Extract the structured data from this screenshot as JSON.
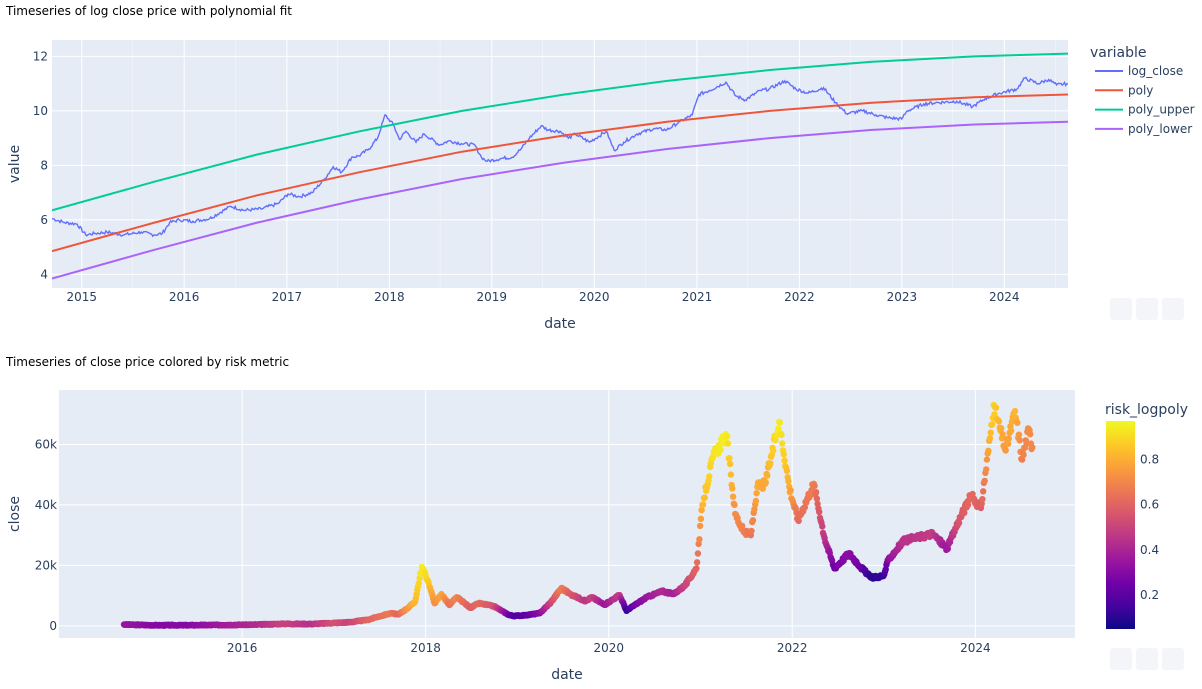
{
  "chart_data": [
    {
      "type": "line",
      "title": "Timeseries of log close price with polynomial fit",
      "xlabel": "date",
      "ylabel": "value",
      "x_ticks": [
        "2015",
        "2016",
        "2017",
        "2018",
        "2019",
        "2020",
        "2021",
        "2022",
        "2023",
        "2024"
      ],
      "y_ticks": [
        "4",
        "6",
        "8",
        "10",
        "12"
      ],
      "xlim": [
        "2014-09-17",
        "2024-08-15"
      ],
      "ylim": [
        3.5,
        12.6
      ],
      "grid": true,
      "legend": {
        "title": "variable",
        "placement": "right"
      },
      "series": [
        {
          "name": "log_close",
          "color": "#636efa",
          "points": [
            [
              "2014-09-17",
              6.05
            ],
            [
              "2014-11-01",
              5.9
            ],
            [
              "2014-12-15",
              5.85
            ],
            [
              "2015-01-15",
              5.45
            ],
            [
              "2015-02-15",
              5.5
            ],
            [
              "2015-04-01",
              5.55
            ],
            [
              "2015-06-01",
              5.45
            ],
            [
              "2015-08-01",
              5.55
            ],
            [
              "2015-09-15",
              5.45
            ],
            [
              "2015-10-15",
              5.5
            ],
            [
              "2015-11-10",
              5.9
            ],
            [
              "2015-12-15",
              6.0
            ],
            [
              "2016-02-01",
              5.95
            ],
            [
              "2016-04-01",
              6.05
            ],
            [
              "2016-06-15",
              6.5
            ],
            [
              "2016-08-01",
              6.35
            ],
            [
              "2016-10-01",
              6.4
            ],
            [
              "2016-12-01",
              6.6
            ],
            [
              "2017-01-05",
              6.95
            ],
            [
              "2017-02-15",
              6.85
            ],
            [
              "2017-04-01",
              7.0
            ],
            [
              "2017-05-15",
              7.5
            ],
            [
              "2017-06-15",
              7.95
            ],
            [
              "2017-07-15",
              7.75
            ],
            [
              "2017-08-20",
              8.3
            ],
            [
              "2017-09-15",
              8.35
            ],
            [
              "2017-10-20",
              8.6
            ],
            [
              "2017-11-20",
              9.0
            ],
            [
              "2017-12-17",
              9.85
            ],
            [
              "2018-01-15",
              9.5
            ],
            [
              "2018-02-06",
              8.95
            ],
            [
              "2018-03-01",
              9.25
            ],
            [
              "2018-04-06",
              8.85
            ],
            [
              "2018-05-05",
              9.15
            ],
            [
              "2018-06-29",
              8.75
            ],
            [
              "2018-08-01",
              8.9
            ],
            [
              "2018-09-15",
              8.8
            ],
            [
              "2018-11-01",
              8.75
            ],
            [
              "2018-11-25",
              8.3
            ],
            [
              "2018-12-15",
              8.15
            ],
            [
              "2019-02-01",
              8.25
            ],
            [
              "2019-03-15",
              8.3
            ],
            [
              "2019-04-15",
              8.6
            ],
            [
              "2019-05-15",
              9.0
            ],
            [
              "2019-06-26",
              9.45
            ],
            [
              "2019-07-20",
              9.3
            ],
            [
              "2019-09-01",
              9.25
            ],
            [
              "2019-10-01",
              9.0
            ],
            [
              "2019-10-26",
              9.15
            ],
            [
              "2019-12-15",
              8.85
            ],
            [
              "2020-02-13",
              9.25
            ],
            [
              "2020-03-12",
              8.55
            ],
            [
              "2020-04-15",
              8.85
            ],
            [
              "2020-06-01",
              9.15
            ],
            [
              "2020-08-01",
              9.35
            ],
            [
              "2020-09-15",
              9.3
            ],
            [
              "2020-11-01",
              9.6
            ],
            [
              "2020-12-15",
              9.85
            ],
            [
              "2021-01-08",
              10.6
            ],
            [
              "2021-02-15",
              10.75
            ],
            [
              "2021-04-14",
              11.05
            ],
            [
              "2021-05-19",
              10.55
            ],
            [
              "2021-06-22",
              10.4
            ],
            [
              "2021-08-15",
              10.75
            ],
            [
              "2021-09-15",
              10.8
            ],
            [
              "2021-11-10",
              11.1
            ],
            [
              "2021-12-20",
              10.8
            ],
            [
              "2022-02-01",
              10.65
            ],
            [
              "2022-03-28",
              10.85
            ],
            [
              "2022-05-10",
              10.3
            ],
            [
              "2022-06-18",
              9.9
            ],
            [
              "2022-08-15",
              10.0
            ],
            [
              "2022-10-01",
              9.85
            ],
            [
              "2022-11-10",
              9.75
            ],
            [
              "2022-12-31",
              9.7
            ],
            [
              "2023-01-20",
              10.0
            ],
            [
              "2023-03-20",
              10.25
            ],
            [
              "2023-05-01",
              10.3
            ],
            [
              "2023-07-15",
              10.35
            ],
            [
              "2023-09-10",
              10.15
            ],
            [
              "2023-10-25",
              10.45
            ],
            [
              "2023-12-15",
              10.65
            ],
            [
              "2024-02-15",
              10.8
            ],
            [
              "2024-03-14",
              11.2
            ],
            [
              "2024-05-01",
              11.0
            ],
            [
              "2024-06-07",
              11.15
            ],
            [
              "2024-07-05",
              10.95
            ],
            [
              "2024-08-15",
              11.0
            ]
          ]
        },
        {
          "name": "poly",
          "color": "#ef553b",
          "points": [
            [
              "2014-09-17",
              4.85
            ],
            [
              "2015-09-17",
              5.9
            ],
            [
              "2016-09-17",
              6.9
            ],
            [
              "2017-09-17",
              7.75
            ],
            [
              "2018-09-17",
              8.5
            ],
            [
              "2019-09-17",
              9.1
            ],
            [
              "2020-09-17",
              9.6
            ],
            [
              "2021-09-17",
              10.0
            ],
            [
              "2022-09-17",
              10.3
            ],
            [
              "2023-09-17",
              10.5
            ],
            [
              "2024-08-15",
              10.6
            ]
          ]
        },
        {
          "name": "poly_upper",
          "color": "#00cc96",
          "points": [
            [
              "2014-09-17",
              6.35
            ],
            [
              "2015-09-17",
              7.4
            ],
            [
              "2016-09-17",
              8.4
            ],
            [
              "2017-09-17",
              9.25
            ],
            [
              "2018-09-17",
              10.0
            ],
            [
              "2019-09-17",
              10.6
            ],
            [
              "2020-09-17",
              11.1
            ],
            [
              "2021-09-17",
              11.5
            ],
            [
              "2022-09-17",
              11.8
            ],
            [
              "2023-09-17",
              12.0
            ],
            [
              "2024-08-15",
              12.1
            ]
          ]
        },
        {
          "name": "poly_lower",
          "color": "#ab63fa",
          "points": [
            [
              "2014-09-17",
              3.85
            ],
            [
              "2015-09-17",
              4.9
            ],
            [
              "2016-09-17",
              5.9
            ],
            [
              "2017-09-17",
              6.75
            ],
            [
              "2018-09-17",
              7.5
            ],
            [
              "2019-09-17",
              8.1
            ],
            [
              "2020-09-17",
              8.6
            ],
            [
              "2021-09-17",
              9.0
            ],
            [
              "2022-09-17",
              9.3
            ],
            [
              "2023-09-17",
              9.5
            ],
            [
              "2024-08-15",
              9.6
            ]
          ]
        }
      ]
    },
    {
      "type": "scatter",
      "title": "Timeseries of close price colored by risk metric",
      "xlabel": "date",
      "ylabel": "close",
      "x_ticks": [
        "2016",
        "2018",
        "2020",
        "2022",
        "2024"
      ],
      "y_ticks": [
        "0",
        "20k",
        "40k",
        "60k"
      ],
      "xlim": [
        "2014-01-01",
        "2025-02-01"
      ],
      "ylim": [
        -4000,
        78000
      ],
      "grid": true,
      "colorbar": {
        "title": "risk_logpoly",
        "ticks": [
          "0.2",
          "0.4",
          "0.6",
          "0.8"
        ],
        "range": [
          0.05,
          0.97
        ],
        "colors": [
          "#0d0887",
          "#46039f",
          "#7201a8",
          "#9c179e",
          "#bd3786",
          "#d8576b",
          "#ed7953",
          "#fb9f3a",
          "#fdca26",
          "#f0f921"
        ]
      },
      "points": [
        [
          "2014-09-17",
          450,
          0.35
        ],
        [
          "2015-01-15",
          220,
          0.3
        ],
        [
          "2015-06-01",
          230,
          0.3
        ],
        [
          "2015-11-01",
          330,
          0.38
        ],
        [
          "2016-03-01",
          420,
          0.42
        ],
        [
          "2016-06-15",
          700,
          0.5
        ],
        [
          "2016-10-01",
          620,
          0.44
        ],
        [
          "2017-01-05",
          1000,
          0.55
        ],
        [
          "2017-03-01",
          1200,
          0.5
        ],
        [
          "2017-05-15",
          2000,
          0.6
        ],
        [
          "2017-06-15",
          2800,
          0.62
        ],
        [
          "2017-08-15",
          4200,
          0.66
        ],
        [
          "2017-09-15",
          3800,
          0.6
        ],
        [
          "2017-10-20",
          5800,
          0.74
        ],
        [
          "2017-11-20",
          8000,
          0.82
        ],
        [
          "2017-12-17",
          19500,
          0.95
        ],
        [
          "2018-01-10",
          15000,
          0.88
        ],
        [
          "2018-02-06",
          7500,
          0.72
        ],
        [
          "2018-03-05",
          10500,
          0.78
        ],
        [
          "2018-04-06",
          6900,
          0.64
        ],
        [
          "2018-05-05",
          9500,
          0.7
        ],
        [
          "2018-06-29",
          6000,
          0.58
        ],
        [
          "2018-08-01",
          7500,
          0.62
        ],
        [
          "2018-10-01",
          6500,
          0.55
        ],
        [
          "2018-11-25",
          3800,
          0.28
        ],
        [
          "2018-12-15",
          3300,
          0.18
        ],
        [
          "2019-02-01",
          3500,
          0.2
        ],
        [
          "2019-04-01",
          4200,
          0.3
        ],
        [
          "2019-05-15",
          7800,
          0.5
        ],
        [
          "2019-06-26",
          12500,
          0.68
        ],
        [
          "2019-08-01",
          10500,
          0.58
        ],
        [
          "2019-10-01",
          8200,
          0.45
        ],
        [
          "2019-10-26",
          9500,
          0.5
        ],
        [
          "2019-12-15",
          7000,
          0.35
        ],
        [
          "2020-02-13",
          10200,
          0.48
        ],
        [
          "2020-03-12",
          5000,
          0.12
        ],
        [
          "2020-04-15",
          7000,
          0.25
        ],
        [
          "2020-06-01",
          9500,
          0.35
        ],
        [
          "2020-08-01",
          11500,
          0.42
        ],
        [
          "2020-09-15",
          10500,
          0.38
        ],
        [
          "2020-11-01",
          13500,
          0.5
        ],
        [
          "2020-12-15",
          19000,
          0.6
        ],
        [
          "2021-01-08",
          40000,
          0.82
        ],
        [
          "2021-02-20",
          56000,
          0.92
        ],
        [
          "2021-04-14",
          63000,
          0.95
        ],
        [
          "2021-05-19",
          37000,
          0.72
        ],
        [
          "2021-06-22",
          31000,
          0.68
        ],
        [
          "2021-07-20",
          30000,
          0.65
        ],
        [
          "2021-08-15",
          46000,
          0.8
        ],
        [
          "2021-09-15",
          47000,
          0.78
        ],
        [
          "2021-11-10",
          67500,
          0.95
        ],
        [
          "2021-12-20",
          46000,
          0.8
        ],
        [
          "2022-01-24",
          35000,
          0.62
        ],
        [
          "2022-03-28",
          47000,
          0.68
        ],
        [
          "2022-05-10",
          29000,
          0.45
        ],
        [
          "2022-06-18",
          19000,
          0.25
        ],
        [
          "2022-08-15",
          24000,
          0.32
        ],
        [
          "2022-10-01",
          19500,
          0.25
        ],
        [
          "2022-11-10",
          16000,
          0.1
        ],
        [
          "2022-12-31",
          16500,
          0.12
        ],
        [
          "2023-01-20",
          22000,
          0.32
        ],
        [
          "2023-03-20",
          28000,
          0.45
        ],
        [
          "2023-05-01",
          29000,
          0.45
        ],
        [
          "2023-07-15",
          30500,
          0.48
        ],
        [
          "2023-09-10",
          25500,
          0.35
        ],
        [
          "2023-10-25",
          34500,
          0.55
        ],
        [
          "2023-12-15",
          43000,
          0.62
        ],
        [
          "2024-01-23",
          39000,
          0.58
        ],
        [
          "2024-02-28",
          62000,
          0.82
        ],
        [
          "2024-03-14",
          73000,
          0.88
        ],
        [
          "2024-05-01",
          58000,
          0.75
        ],
        [
          "2024-06-07",
          71000,
          0.82
        ],
        [
          "2024-07-05",
          55000,
          0.68
        ],
        [
          "2024-08-01",
          65000,
          0.72
        ],
        [
          "2024-08-15",
          59000,
          0.7
        ]
      ]
    }
  ]
}
